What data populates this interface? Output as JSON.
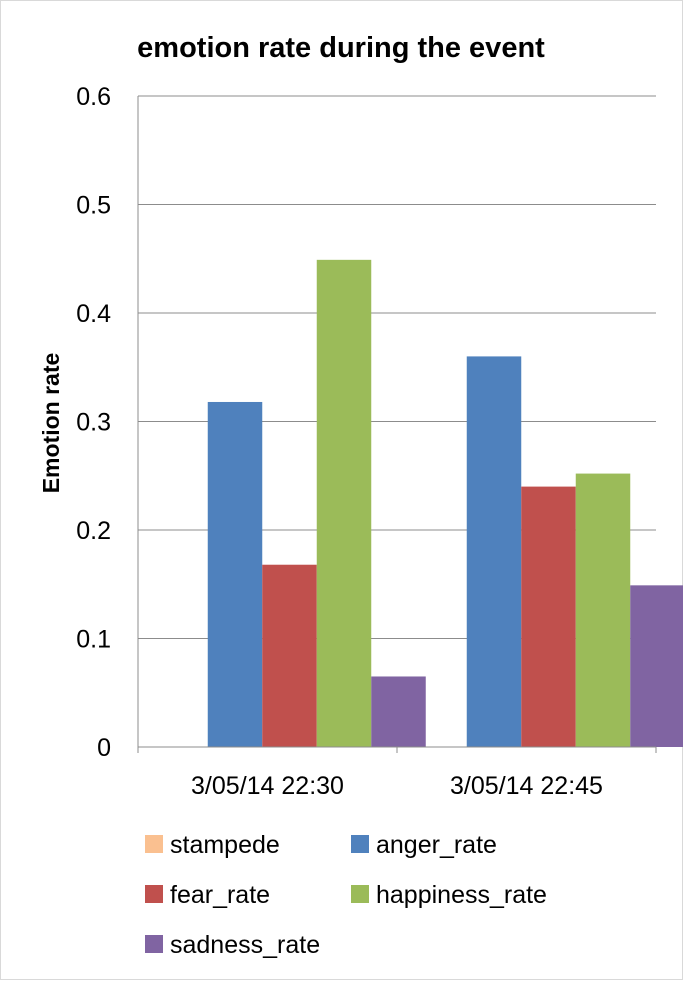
{
  "chart_data": {
    "type": "bar",
    "title": "emotion rate during the event",
    "xlabel": "",
    "ylabel": "Emotion rate",
    "ylim": [
      0,
      0.6
    ],
    "yticks": [
      "0",
      "0.1",
      "0.2",
      "0.3",
      "0.4",
      "0.5",
      "0.6"
    ],
    "grid": true,
    "legend_position": "bottom",
    "categories": [
      "3/05/14 22:30",
      "3/05/14 22:45"
    ],
    "series": [
      {
        "name": "stampede",
        "color": "#FAC090",
        "values": [
          0,
          0
        ]
      },
      {
        "name": "anger_rate",
        "color": "#4F81BD",
        "values": [
          0.318,
          0.36
        ]
      },
      {
        "name": "fear_rate",
        "color": "#C0504D",
        "values": [
          0.168,
          0.24
        ]
      },
      {
        "name": "happiness_rate",
        "color": "#9BBB59",
        "values": [
          0.449,
          0.252
        ]
      },
      {
        "name": "sadness_rate",
        "color": "#8064A2",
        "values": [
          0.065,
          0.149
        ]
      }
    ]
  }
}
